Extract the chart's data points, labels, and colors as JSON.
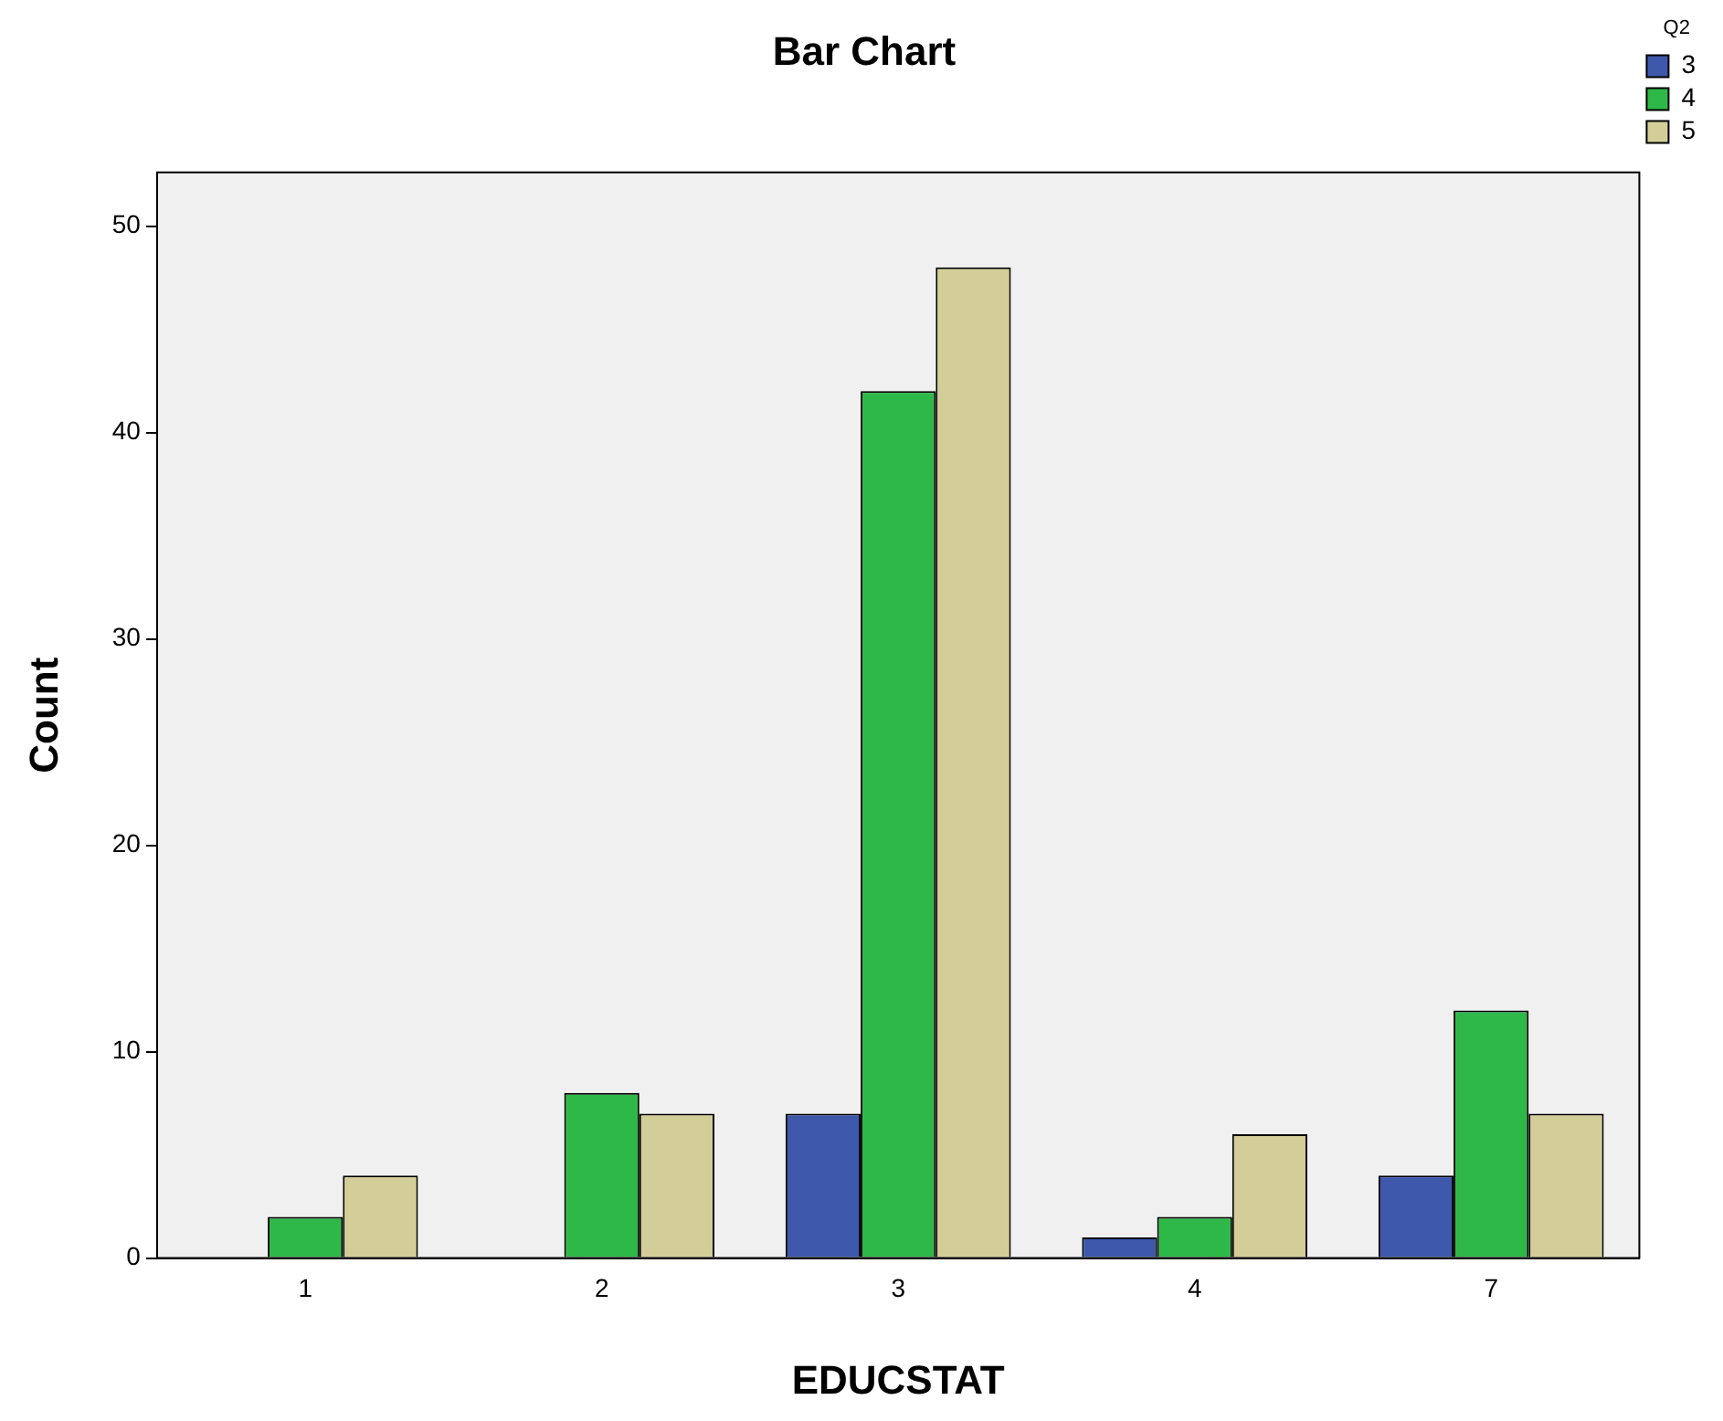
{
  "chart_data": {
    "type": "bar",
    "title": "Bar Chart",
    "xlabel": "EDUCSTAT",
    "ylabel": "Count",
    "legend_title": "Q2",
    "categories": [
      "1",
      "2",
      "3",
      "4",
      "7"
    ],
    "series": [
      {
        "name": "3",
        "color": "#3e58ac",
        "values": [
          null,
          null,
          7,
          1,
          4
        ]
      },
      {
        "name": "4",
        "color": "#2eb848",
        "values": [
          2,
          8,
          42,
          2,
          12
        ]
      },
      {
        "name": "5",
        "color": "#d3ce97",
        "values": [
          4,
          7,
          48,
          6,
          7
        ]
      }
    ],
    "ylim": [
      0,
      52.6
    ],
    "yticks": [
      0,
      10,
      20,
      30,
      40,
      50
    ],
    "grid": false,
    "legend": "top right"
  }
}
